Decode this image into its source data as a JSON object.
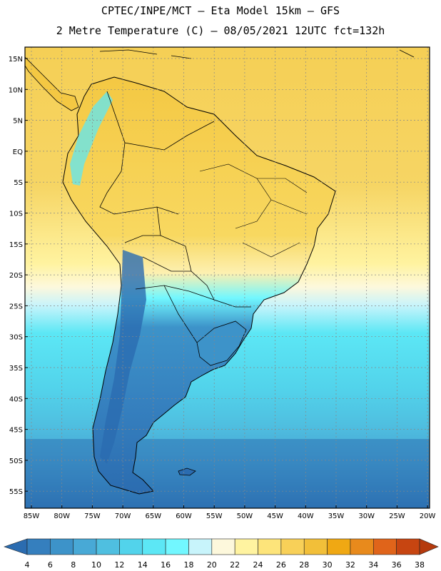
{
  "header": {
    "line1": "CPTEC/INPE/MCT –  Eta Model 15km – GFS",
    "line2": "2 Metre Temperature (C) – 08/05/2021 12UTC fct=132h"
  },
  "map": {
    "lon_range": [
      -85,
      -20
    ],
    "lat_range": [
      -58,
      17
    ],
    "lat_ticks": [
      "15N",
      "10N",
      "5N",
      "EQ",
      "5S",
      "10S",
      "15S",
      "20S",
      "25S",
      "30S",
      "35S",
      "40S",
      "45S",
      "50S",
      "55S"
    ],
    "lon_ticks": [
      "85W",
      "80W",
      "75W",
      "70W",
      "65W",
      "60W",
      "55W",
      "50W",
      "45W",
      "40W",
      "35W",
      "30W",
      "25W",
      "20W"
    ],
    "grid": true
  },
  "colorbar": {
    "labels": [
      "4",
      "6",
      "8",
      "10",
      "12",
      "14",
      "16",
      "18",
      "20",
      "22",
      "24",
      "26",
      "28",
      "30",
      "32",
      "34",
      "36",
      "38"
    ],
    "colors": [
      "#2b6cb0",
      "#357fbe",
      "#3d93c9",
      "#48a9d6",
      "#4fbfe0",
      "#52d3eb",
      "#5ce7f5",
      "#72f7ff",
      "#c8f4fb",
      "#fdf8dc",
      "#fff3a0",
      "#fde47a",
      "#f8d058",
      "#f2bf39",
      "#f0a813",
      "#e88a1c",
      "#e0641a",
      "#c74511",
      "#b53a0d"
    ]
  }
}
